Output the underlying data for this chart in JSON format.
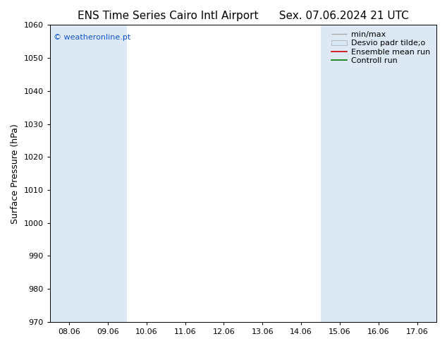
{
  "title": "ENS Time Series Cairo Intl Airport",
  "title2": "Sex. 07.06.2024 21 UTC",
  "ylabel": "Surface Pressure (hPa)",
  "ylim": [
    970,
    1060
  ],
  "yticks": [
    970,
    980,
    990,
    1000,
    1010,
    1020,
    1030,
    1040,
    1050,
    1060
  ],
  "xlabels": [
    "08.06",
    "09.06",
    "10.06",
    "11.06",
    "12.06",
    "13.06",
    "14.06",
    "15.06",
    "16.06",
    "17.06"
  ],
  "background_color": "#ffffff",
  "plot_bg_color": "#ffffff",
  "band_color": "#dce9f5",
  "shaded_indices": [
    0,
    1,
    7,
    8,
    9
  ],
  "watermark": "© weatheronline.pt",
  "watermark_color": "#1155cc",
  "legend_items": [
    {
      "label": "min/max",
      "color": "#aaaaaa"
    },
    {
      "label": "Desvio padr tilde;o",
      "color": "#cccccc"
    },
    {
      "label": "Ensemble mean run",
      "color": "#cc0000"
    },
    {
      "label": "Controll run",
      "color": "#007700"
    }
  ],
  "font_size_title": 11,
  "font_size_tick": 8,
  "font_size_ylabel": 9,
  "font_size_legend": 8,
  "font_size_watermark": 8
}
